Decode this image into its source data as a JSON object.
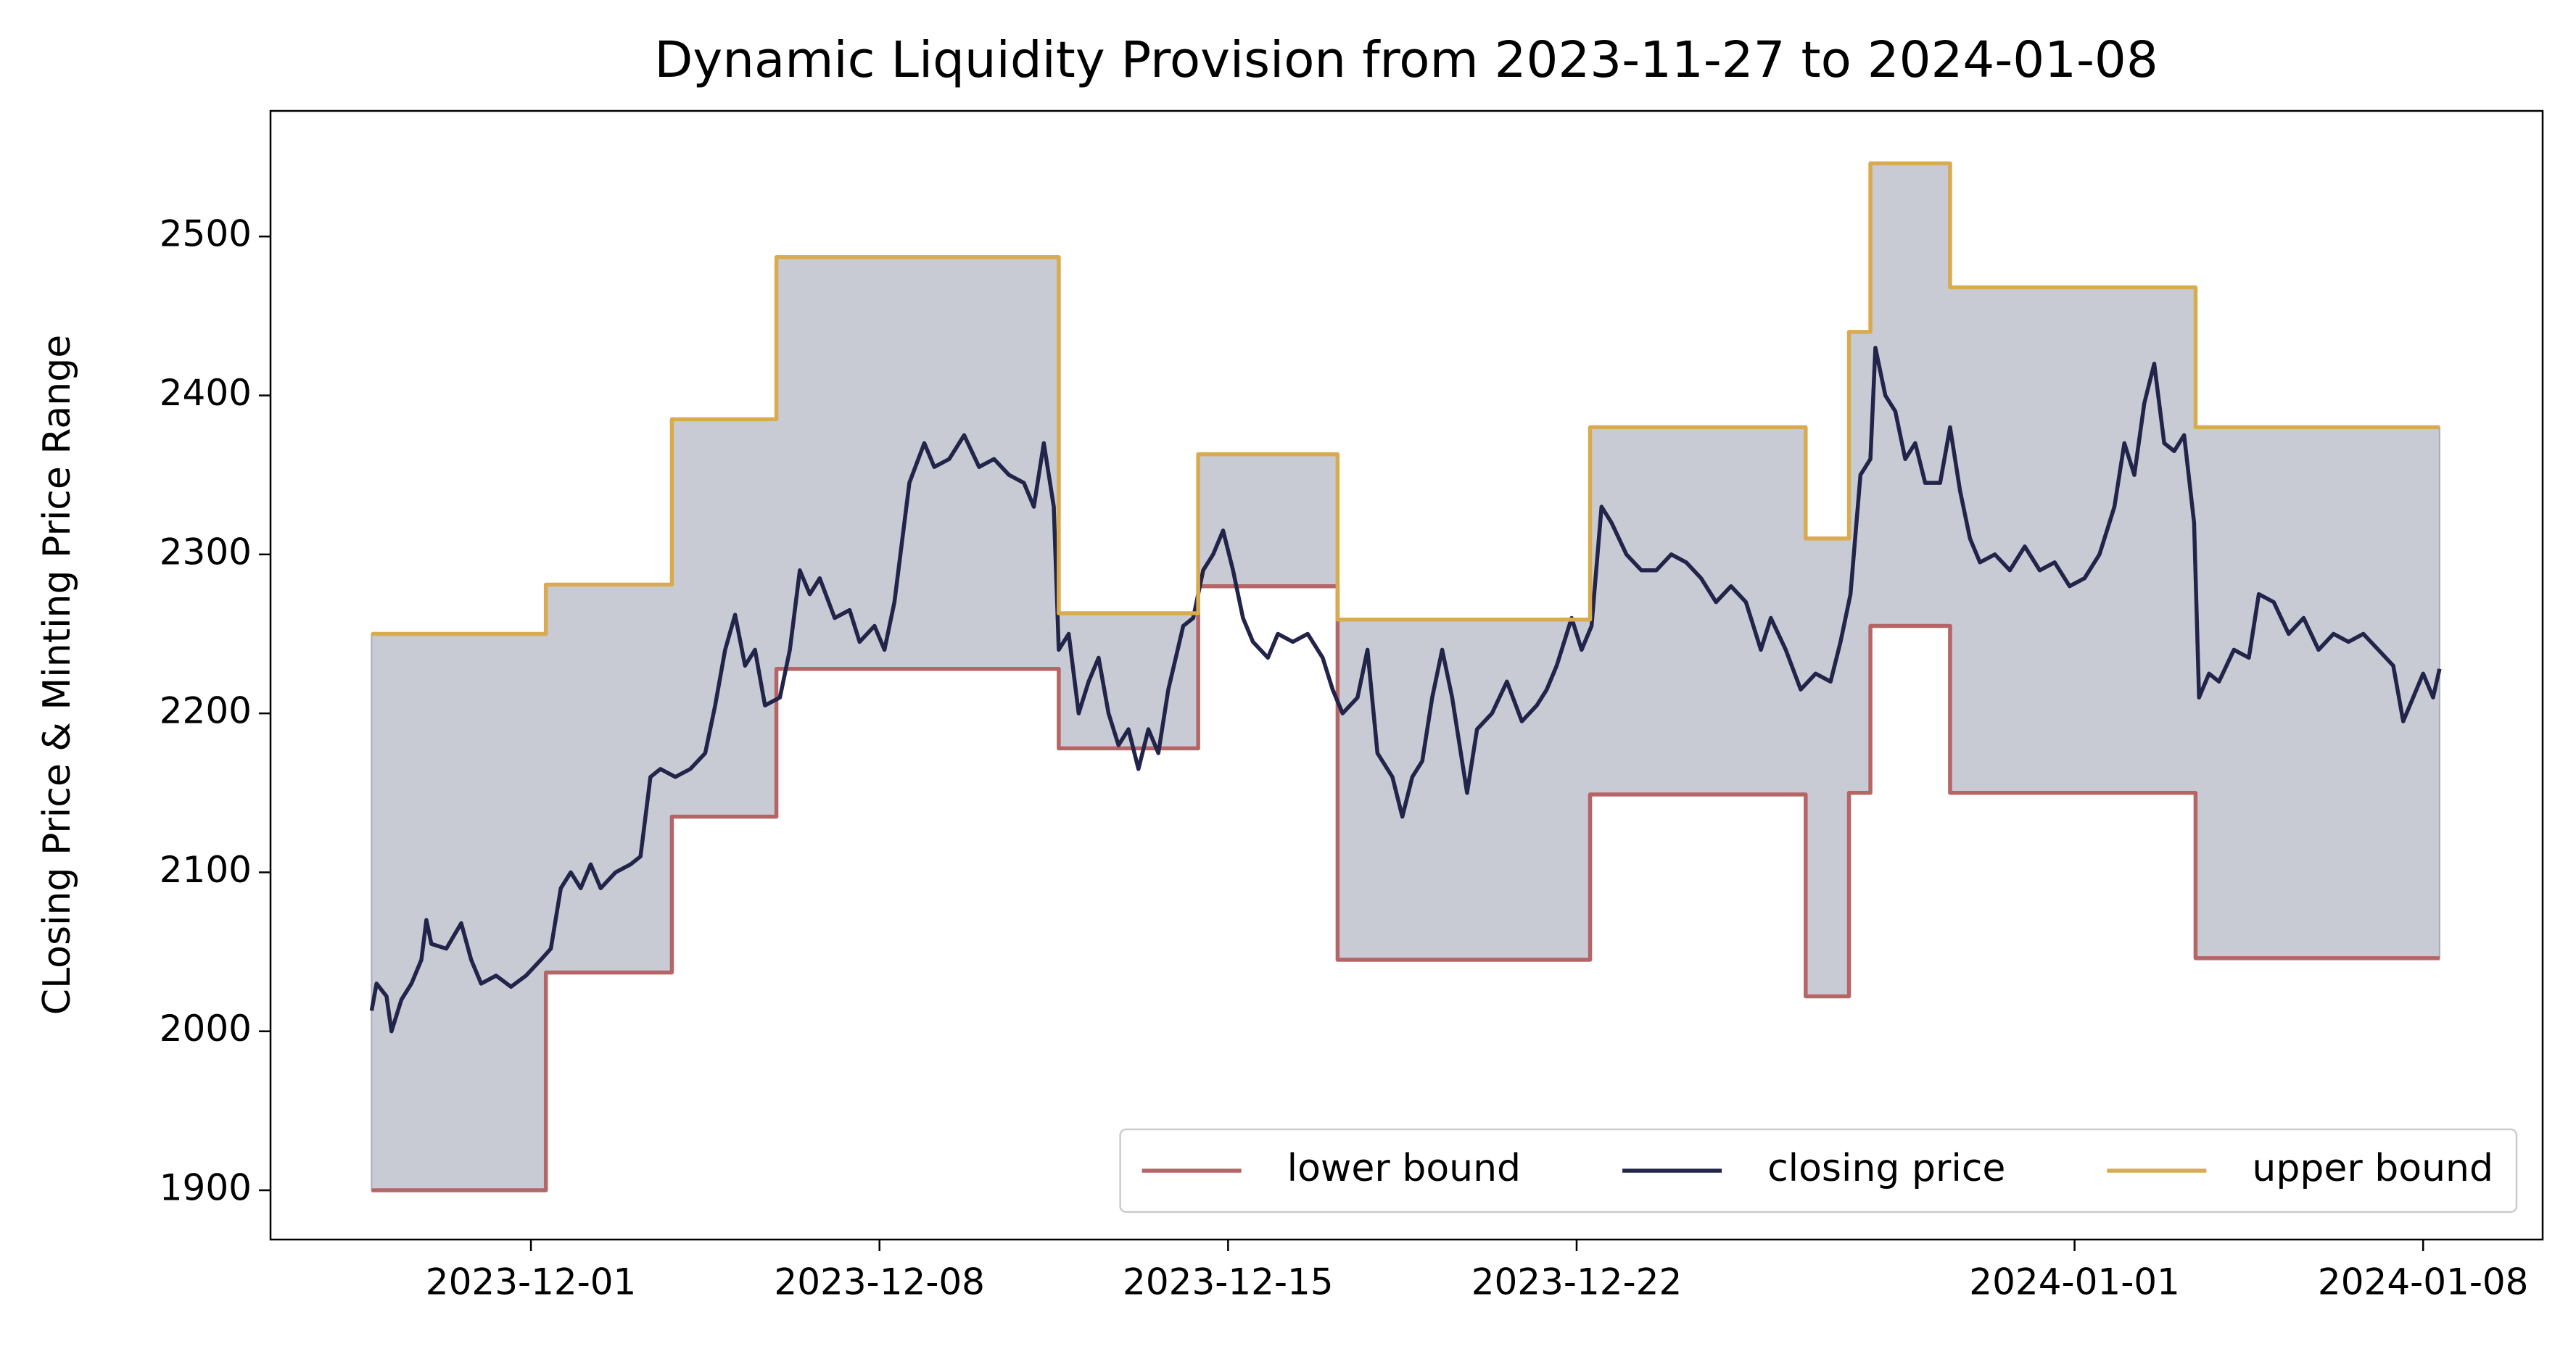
{
  "chart_data": {
    "type": "line",
    "title": "Dynamic Liquidity Provision from 2023-11-27 to 2024-01-08",
    "y_label": "CLosing Price & Minting Price Range",
    "xlim": [
      -1.23,
      44.4
    ],
    "ylim": [
      1869,
      2579
    ],
    "xticks": [
      {
        "value": 4,
        "label": "2023-12-01"
      },
      {
        "value": 11,
        "label": "2023-12-08"
      },
      {
        "value": 18,
        "label": "2023-12-15"
      },
      {
        "value": 25,
        "label": "2023-12-22"
      },
      {
        "value": 35,
        "label": "2024-01-01"
      },
      {
        "value": 42,
        "label": "2024-01-08"
      }
    ],
    "yticks": [
      1900,
      2000,
      2100,
      2200,
      2300,
      2400,
      2500
    ],
    "fill_between": {
      "color": "#c8cbd4"
    },
    "legend": "lower right",
    "series": [
      {
        "name": "lower bound",
        "color": "#b56566",
        "step": "post",
        "x": [
          0.8,
          4.3,
          6.83,
          8.93,
          14.6,
          17.4,
          20.2,
          25.27,
          29.6,
          30.47,
          30.9,
          32.5,
          37.43,
          42.33
        ],
        "values": [
          1900,
          2037,
          2135,
          2228,
          2178,
          2280,
          2045,
          2149,
          2022,
          2150,
          2255,
          2150,
          2046,
          2046
        ]
      },
      {
        "name": "closing price",
        "color": "#22244a",
        "x": [
          0.8,
          0.9,
          1.1,
          1.2,
          1.4,
          1.6,
          1.8,
          1.9,
          2.0,
          2.3,
          2.6,
          2.8,
          3.0,
          3.3,
          3.6,
          3.9,
          4.2,
          4.4,
          4.6,
          4.8,
          5.0,
          5.2,
          5.4,
          5.7,
          6.0,
          6.2,
          6.4,
          6.6,
          6.9,
          7.2,
          7.5,
          7.7,
          7.9,
          8.1,
          8.3,
          8.5,
          8.7,
          9.0,
          9.2,
          9.4,
          9.6,
          9.8,
          10.1,
          10.4,
          10.6,
          10.9,
          11.1,
          11.3,
          11.6,
          11.9,
          12.1,
          12.4,
          12.7,
          13.0,
          13.3,
          13.6,
          13.9,
          14.1,
          14.3,
          14.5,
          14.6,
          14.8,
          15.0,
          15.2,
          15.4,
          15.6,
          15.8,
          16.0,
          16.2,
          16.4,
          16.6,
          16.8,
          17.1,
          17.3,
          17.5,
          17.7,
          17.9,
          18.1,
          18.3,
          18.5,
          18.8,
          19.0,
          19.3,
          19.6,
          19.9,
          20.1,
          20.3,
          20.6,
          20.8,
          21.0,
          21.3,
          21.5,
          21.7,
          21.9,
          22.1,
          22.3,
          22.5,
          22.8,
          23.0,
          23.3,
          23.6,
          23.9,
          24.2,
          24.4,
          24.6,
          24.9,
          25.1,
          25.3,
          25.5,
          25.7,
          26.0,
          26.3,
          26.6,
          26.9,
          27.2,
          27.5,
          27.8,
          28.1,
          28.4,
          28.7,
          28.9,
          29.2,
          29.5,
          29.8,
          30.1,
          30.3,
          30.5,
          30.7,
          30.9,
          31.0,
          31.2,
          31.4,
          31.6,
          31.8,
          32.0,
          32.3,
          32.5,
          32.7,
          32.9,
          33.1,
          33.4,
          33.7,
          34.0,
          34.3,
          34.6,
          34.9,
          35.2,
          35.5,
          35.8,
          36.0,
          36.2,
          36.4,
          36.6,
          36.8,
          37.0,
          37.2,
          37.4,
          37.5,
          37.7,
          37.9,
          38.2,
          38.5,
          38.7,
          39.0,
          39.3,
          39.6,
          39.9,
          40.2,
          40.5,
          40.8,
          41.1,
          41.4,
          41.6,
          41.8,
          42.0,
          42.2,
          42.33
        ],
        "values": [
          2013,
          2030,
          2022,
          2000,
          2020,
          2030,
          2045,
          2070,
          2055,
          2052,
          2068,
          2045,
          2030,
          2035,
          2028,
          2035,
          2045,
          2052,
          2090,
          2100,
          2090,
          2105,
          2090,
          2100,
          2105,
          2110,
          2160,
          2165,
          2160,
          2165,
          2175,
          2205,
          2240,
          2262,
          2230,
          2240,
          2205,
          2210,
          2240,
          2290,
          2275,
          2285,
          2260,
          2265,
          2245,
          2255,
          2240,
          2270,
          2345,
          2370,
          2355,
          2360,
          2375,
          2355,
          2360,
          2350,
          2345,
          2330,
          2370,
          2330,
          2240,
          2250,
          2200,
          2220,
          2235,
          2200,
          2180,
          2190,
          2165,
          2190,
          2175,
          2215,
          2255,
          2260,
          2290,
          2300,
          2315,
          2290,
          2260,
          2245,
          2235,
          2250,
          2245,
          2250,
          2235,
          2215,
          2200,
          2210,
          2240,
          2175,
          2160,
          2135,
          2160,
          2170,
          2210,
          2240,
          2210,
          2150,
          2190,
          2200,
          2220,
          2195,
          2205,
          2215,
          2230,
          2260,
          2240,
          2255,
          2330,
          2320,
          2300,
          2290,
          2290,
          2300,
          2295,
          2285,
          2270,
          2280,
          2270,
          2240,
          2260,
          2240,
          2215,
          2225,
          2220,
          2245,
          2275,
          2350,
          2360,
          2430,
          2400,
          2390,
          2360,
          2370,
          2345,
          2345,
          2380,
          2340,
          2310,
          2295,
          2300,
          2290,
          2305,
          2290,
          2295,
          2280,
          2285,
          2300,
          2330,
          2370,
          2350,
          2395,
          2420,
          2370,
          2365,
          2375,
          2320,
          2210,
          2225,
          2220,
          2240,
          2235,
          2275,
          2270,
          2250,
          2260,
          2240,
          2250,
          2245,
          2250,
          2240,
          2230,
          2195,
          2210,
          2225,
          2210,
          2228
        ]
      },
      {
        "name": "upper bound",
        "color": "#d9ab4f",
        "step": "post",
        "x": [
          0.8,
          4.3,
          6.83,
          8.93,
          14.6,
          17.4,
          20.2,
          25.27,
          29.6,
          30.47,
          30.9,
          32.5,
          37.43,
          42.33
        ],
        "values": [
          2250,
          2281,
          2385,
          2487,
          2263,
          2363,
          2259,
          2380,
          2310,
          2440,
          2546,
          2468,
          2380,
          2380
        ]
      }
    ]
  }
}
